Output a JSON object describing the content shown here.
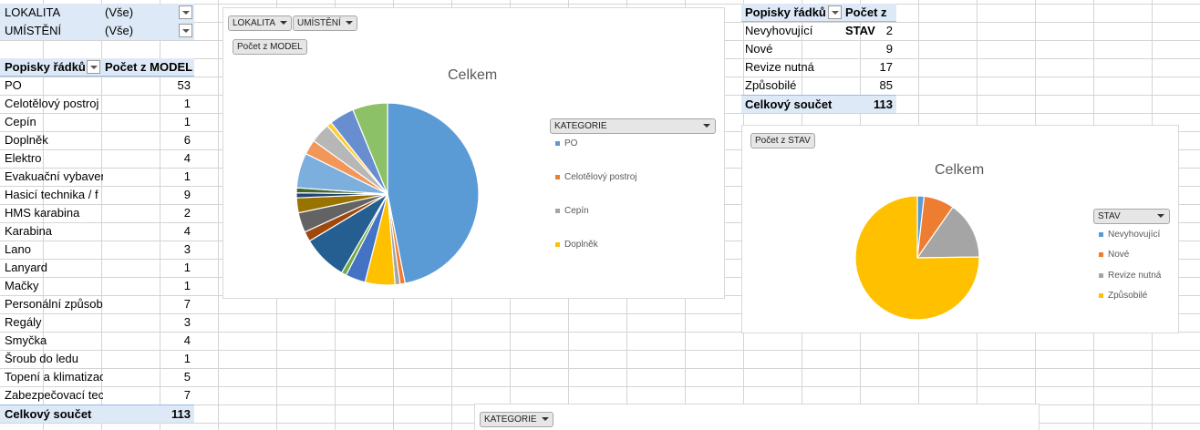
{
  "filters": [
    {
      "field": "LOKALITA",
      "value": "(Vše)"
    },
    {
      "field": "UMÍSTĚNÍ",
      "value": "(Vše)"
    }
  ],
  "pivot_model": {
    "header_label": "Popisky řádků",
    "header_value": "Počet z MODEL",
    "rows": [
      {
        "label": "PO",
        "value": "53"
      },
      {
        "label": "Celotělový postroj",
        "value": "1"
      },
      {
        "label": "Cepín",
        "value": "1"
      },
      {
        "label": "Doplněk",
        "value": "6"
      },
      {
        "label": "Elektro",
        "value": "4"
      },
      {
        "label": "Evakuační vybavení",
        "value": "1"
      },
      {
        "label": "Hasicí technika / f",
        "value": "9"
      },
      {
        "label": "HMS karabina",
        "value": "2"
      },
      {
        "label": "Karabina",
        "value": "4"
      },
      {
        "label": "Lano",
        "value": "3"
      },
      {
        "label": "Lanyard",
        "value": "1"
      },
      {
        "label": "Mačky",
        "value": "1"
      },
      {
        "label": "Personální způsob",
        "value": "7"
      },
      {
        "label": "Regály",
        "value": "3"
      },
      {
        "label": "Smyčka",
        "value": "4"
      },
      {
        "label": "Šroub do ledu",
        "value": "1"
      },
      {
        "label": "Topení a klimatizace",
        "value": "5"
      },
      {
        "label": "Zabezpečovací tec",
        "value": "7"
      }
    ],
    "total_label": "Celkový součet",
    "total_value": "113"
  },
  "pivot_stav": {
    "header_label": "Popisky řádků",
    "header_value": "Počet z STAV",
    "rows": [
      {
        "label": "Nevyhovující",
        "value": "2"
      },
      {
        "label": "Nové",
        "value": "9"
      },
      {
        "label": "Revize nutná",
        "value": "17"
      },
      {
        "label": "Způsobilé",
        "value": "85"
      }
    ],
    "total_label": "Celkový součet",
    "total_value": "113"
  },
  "chart1": {
    "buttons": {
      "lokalita": "LOKALITA",
      "umisteni": "UMÍSTĚNÍ",
      "value": "Počet z MODEL"
    },
    "title": "Celkem",
    "legend_field": "KATEGORIE",
    "legend_items": [
      "PO",
      "Celotělový postroj",
      "Cepín",
      "Doplněk"
    ]
  },
  "chart2": {
    "button_value": "Počet z STAV",
    "title": "Celkem",
    "legend_field": "STAV",
    "legend_items": [
      "Nevyhovující",
      "Nové",
      "Revize nutná",
      "Způsobilé"
    ]
  },
  "bottom_field_button": "KATEGORIE",
  "chart_data": [
    {
      "type": "pie",
      "title": "Celkem",
      "categories": [
        "PO",
        "Celotělový postroj",
        "Cepín",
        "Doplněk",
        "Elektro",
        "Evakuační vybavení",
        "Hasicí technika / f",
        "HMS karabina",
        "Karabina",
        "Lano",
        "Lanyard",
        "Mačky",
        "Personální způsob",
        "Regály",
        "Smyčka",
        "Šroub do ledu",
        "Topení a klimatizace",
        "Zabezpečovací tec"
      ],
      "values": [
        53,
        1,
        1,
        6,
        4,
        1,
        9,
        2,
        4,
        3,
        1,
        1,
        7,
        3,
        4,
        1,
        5,
        7
      ],
      "colors": [
        "#5b9bd5",
        "#ed7d31",
        "#a5a5a5",
        "#ffc000",
        "#4472c4",
        "#70ad47",
        "#255e91",
        "#9e480e",
        "#636363",
        "#997300",
        "#264478",
        "#43682b",
        "#7cafdd",
        "#f1975a",
        "#b7b7b7",
        "#ffcd33",
        "#698ed0",
        "#8cc168"
      ]
    },
    {
      "type": "pie",
      "title": "Celkem",
      "categories": [
        "Nevyhovující",
        "Nové",
        "Revize nutná",
        "Způsobilé"
      ],
      "values": [
        2,
        9,
        17,
        85
      ],
      "colors": [
        "#5b9bd5",
        "#ed7d31",
        "#a5a5a5",
        "#ffc000"
      ]
    }
  ]
}
